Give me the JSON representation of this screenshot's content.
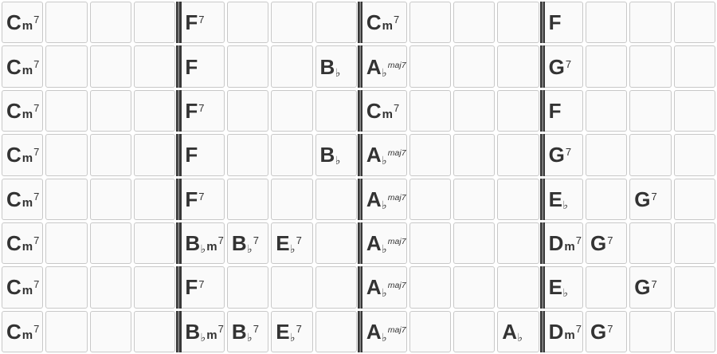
{
  "style": {
    "page_background": "#ffffff",
    "cell_background": "#fafafa",
    "cell_border_color": "#c8c8c8",
    "barline_color": "#383838",
    "chord_text_color": "#333333"
  },
  "grid": {
    "columns": 16,
    "row_count": 8,
    "beats_per_bar": 4,
    "barline_before_columns": [
      5,
      9,
      13
    ],
    "rows": [
      [
        "Cm7",
        "",
        "",
        "",
        "F7",
        "",
        "",
        "",
        "Cm7",
        "",
        "",
        "",
        "F",
        "",
        "",
        ""
      ],
      [
        "Cm7",
        "",
        "",
        "",
        "F",
        "",
        "",
        "B♭",
        "A♭maj7",
        "",
        "",
        "",
        "G7",
        "",
        "",
        ""
      ],
      [
        "Cm7",
        "",
        "",
        "",
        "F7",
        "",
        "",
        "",
        "Cm7",
        "",
        "",
        "",
        "F",
        "",
        "",
        ""
      ],
      [
        "Cm7",
        "",
        "",
        "",
        "F",
        "",
        "",
        "B♭",
        "A♭maj7",
        "",
        "",
        "",
        "G7",
        "",
        "",
        ""
      ],
      [
        "Cm7",
        "",
        "",
        "",
        "F7",
        "",
        "",
        "",
        "A♭maj7",
        "",
        "",
        "",
        "E♭",
        "",
        "G7",
        ""
      ],
      [
        "Cm7",
        "",
        "",
        "",
        "B♭m7",
        "B♭7",
        "E♭7",
        "",
        "A♭maj7",
        "",
        "",
        "",
        "Dm7",
        "G7",
        "",
        ""
      ],
      [
        "Cm7",
        "",
        "",
        "",
        "F7",
        "",
        "",
        "",
        "A♭maj7",
        "",
        "",
        "",
        "E♭",
        "",
        "G7",
        ""
      ],
      [
        "Cm7",
        "",
        "",
        "",
        "B♭m7",
        "B♭7",
        "E♭7",
        "",
        "A♭maj7",
        "",
        "",
        "A♭",
        "Dm7",
        "G7",
        "",
        ""
      ]
    ]
  }
}
